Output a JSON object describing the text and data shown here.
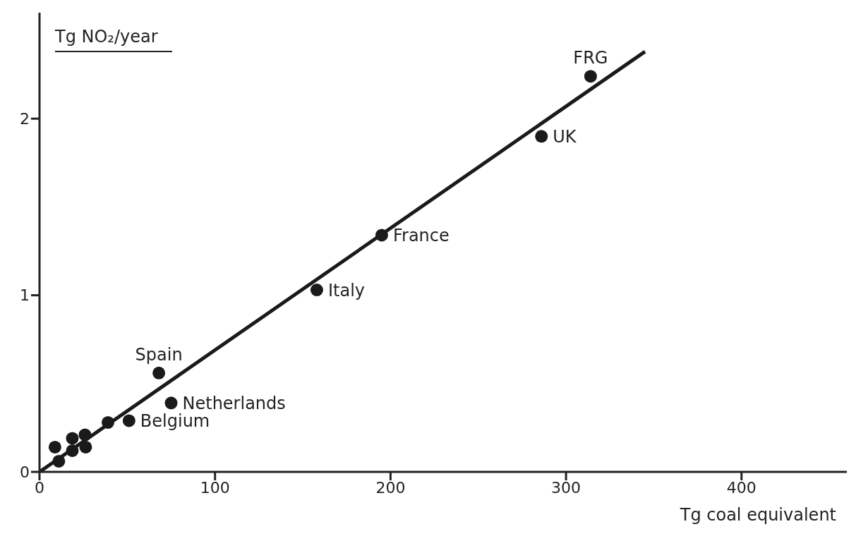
{
  "chart_data": {
    "type": "scatter",
    "ylabel": "Tg NO₂/year",
    "xlabel": "Tg coal equivalent",
    "xlim": [
      0,
      460
    ],
    "ylim": [
      0,
      2.6
    ],
    "xticks": [
      0,
      100,
      200,
      300,
      400
    ],
    "yticks": [
      0,
      1,
      2
    ],
    "grid": false,
    "legend": false,
    "marker": "circle",
    "series": [
      {
        "color": "#1a1a1a",
        "x": [
          8.8,
          11,
          18.7,
          18.7,
          25.9,
          26.3,
          39,
          51,
          68,
          75,
          158,
          195,
          286,
          314
        ],
        "values": [
          0.14,
          0.06,
          0.19,
          0.12,
          0.21,
          0.14,
          0.28,
          0.29,
          0.56,
          0.39,
          1.03,
          1.34,
          1.9,
          2.24
        ]
      },
      {
        "type": "line",
        "color": "#1a1a1a",
        "marker": "none",
        "line_style": "solid",
        "x": [
          0,
          345
        ],
        "values": [
          0,
          2.38
        ]
      }
    ],
    "annotations": [
      {
        "text": "FRG",
        "x": 314,
        "y": 2.24
      },
      {
        "text": "UK",
        "x": 286,
        "y": 1.9
      },
      {
        "text": "France",
        "x": 195,
        "y": 1.34
      },
      {
        "text": "Italy",
        "x": 158,
        "y": 1.03
      },
      {
        "text": "Spain",
        "x": 68,
        "y": 0.56
      },
      {
        "text": "Netherlands",
        "x": 75,
        "y": 0.39
      },
      {
        "text": "Belgium",
        "x": 51,
        "y": 0.29
      }
    ]
  }
}
